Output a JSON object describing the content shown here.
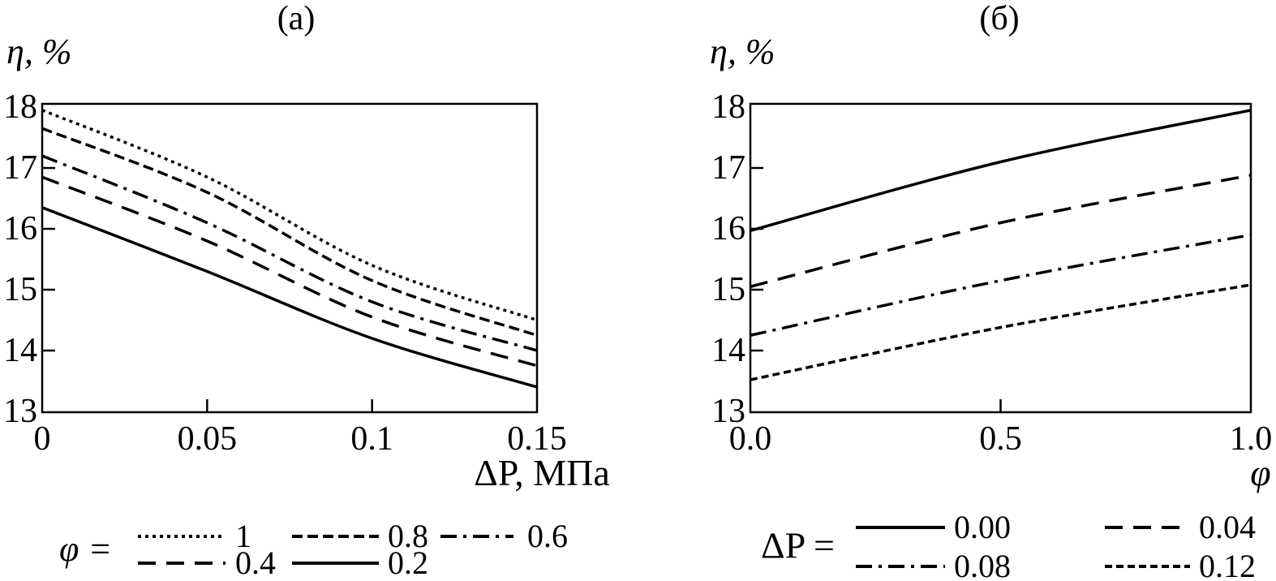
{
  "colors": {
    "line": "#000000",
    "background": "#ffffff",
    "text": "#000000"
  },
  "chart_data": [
    {
      "type": "line",
      "panel": "a",
      "title": "(а)",
      "ylabel": "η, %",
      "xlabel": "ΔP, МПа",
      "xlim": [
        0,
        0.15
      ],
      "ylim": [
        13,
        18
      ],
      "x": [
        0,
        0.05,
        0.1,
        0.15
      ],
      "x_tick_labels": [
        "0",
        "0.05",
        "0.1",
        "0.15"
      ],
      "y_tick_labels": [
        "18",
        "17",
        "16",
        "15",
        "14",
        "13"
      ],
      "grid": false,
      "legend_position": "below",
      "legend_prefix": "φ =",
      "series": [
        {
          "name": "1",
          "style": "dotted",
          "values": [
            17.95,
            16.85,
            15.4,
            14.5
          ]
        },
        {
          "name": "0.8",
          "style": "dense-dash",
          "values": [
            17.65,
            16.6,
            15.15,
            14.25
          ]
        },
        {
          "name": "0.6",
          "style": "dash-dot",
          "values": [
            17.2,
            16.1,
            14.8,
            14.0
          ]
        },
        {
          "name": "0.4",
          "style": "long-dash",
          "values": [
            16.85,
            15.8,
            14.55,
            13.75
          ]
        },
        {
          "name": "0.2",
          "style": "solid",
          "values": [
            16.35,
            15.3,
            14.2,
            13.4
          ]
        }
      ]
    },
    {
      "type": "line",
      "panel": "b",
      "title": "(б)",
      "ylabel": "η, %",
      "xlabel": "φ",
      "xlim": [
        0,
        1
      ],
      "ylim": [
        13,
        18
      ],
      "x": [
        0,
        0.5,
        1.0
      ],
      "x_tick_labels": [
        "0.0",
        "0.5",
        "1.0"
      ],
      "y_tick_labels": [
        "18",
        "17",
        "16",
        "15",
        "14",
        "13"
      ],
      "grid": false,
      "legend_position": "below",
      "legend_prefix": "ΔP =",
      "series": [
        {
          "name": "0.00",
          "style": "solid",
          "values": [
            15.97,
            17.1,
            17.95
          ]
        },
        {
          "name": "0.04",
          "style": "long-dash",
          "values": [
            15.05,
            16.1,
            16.88
          ]
        },
        {
          "name": "0.08",
          "style": "dash-dot",
          "values": [
            14.25,
            15.15,
            15.9
          ]
        },
        {
          "name": "0.12",
          "style": "fine-dash",
          "values": [
            13.52,
            14.38,
            15.08
          ]
        }
      ]
    }
  ]
}
